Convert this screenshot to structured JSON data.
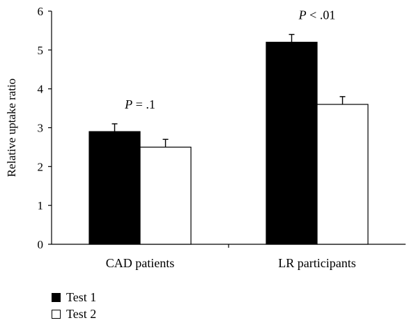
{
  "chart_data": {
    "type": "bar",
    "categories": [
      "CAD patients",
      "LR participants"
    ],
    "series": [
      {
        "name": "Test 1",
        "values": [
          2.9,
          5.2
        ],
        "errors": [
          0.2,
          0.2
        ],
        "color": "#000000"
      },
      {
        "name": "Test 2",
        "values": [
          2.5,
          3.6
        ],
        "errors": [
          0.2,
          0.2
        ],
        "color": "#ffffff"
      }
    ],
    "annotations": [
      {
        "category": "CAD patients",
        "p_label": "P",
        "text": " = .1"
      },
      {
        "category": "LR participants",
        "p_label": "P",
        "text": " < .01"
      }
    ],
    "ylabel": "Relative uptake ratio",
    "xlabel": "",
    "ylim": [
      0,
      6
    ],
    "yticks": [
      "0",
      "1",
      "2",
      "3",
      "4",
      "5",
      "6"
    ],
    "grid": false,
    "legend_position": "bottom-left"
  }
}
